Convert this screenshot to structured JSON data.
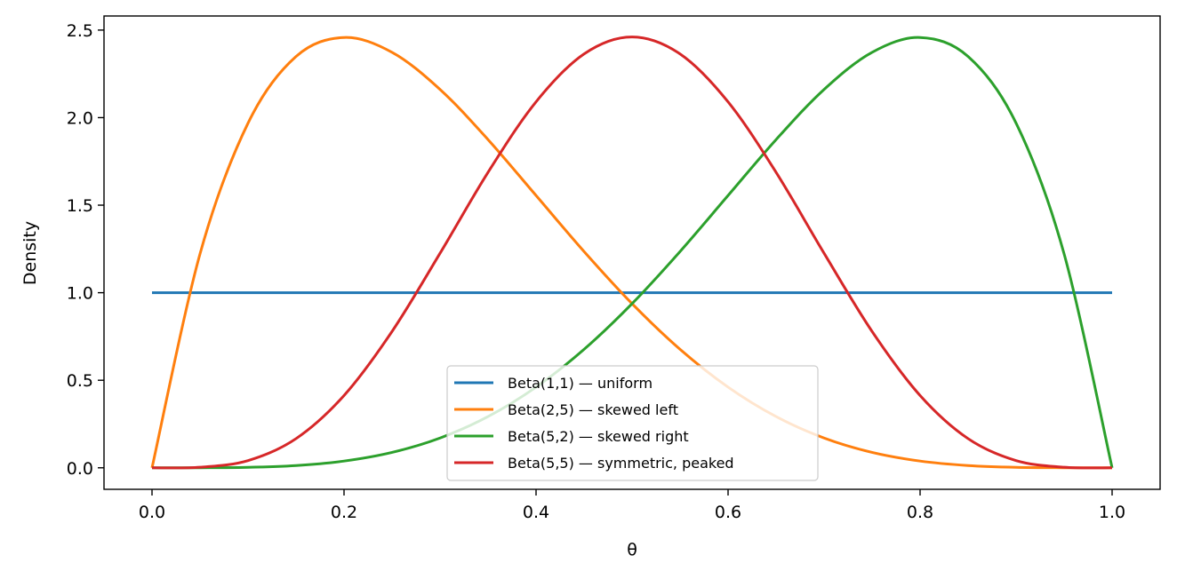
{
  "chart_data": {
    "type": "line",
    "title": "",
    "xlabel": "θ",
    "ylabel": "Density",
    "xlim": [
      -0.05,
      1.05
    ],
    "ylim": [
      -0.1229,
      2.5805
    ],
    "xticks": [
      "0.0",
      "0.2",
      "0.4",
      "0.6",
      "0.8",
      "1.0"
    ],
    "yticks": [
      "0.0",
      "0.5",
      "1.0",
      "1.5",
      "2.0",
      "2.5"
    ],
    "grid": false,
    "legend_placement": "lower center",
    "x": [
      0,
      0.05,
      0.1,
      0.15,
      0.2,
      0.25,
      0.3,
      0.35,
      0.4,
      0.45,
      0.5,
      0.55,
      0.6,
      0.65,
      0.7,
      0.75,
      0.8,
      0.85,
      0.9,
      0.95,
      1
    ],
    "series": [
      {
        "name": "Beta(1,1) — uniform",
        "color": "#1f77b4",
        "values": [
          1,
          1,
          1,
          1,
          1,
          1,
          1,
          1,
          1,
          1,
          1,
          1,
          1,
          1,
          1,
          1,
          1,
          1,
          1,
          1,
          1
        ]
      },
      {
        "name": "Beta(2,5) — skewed left",
        "color": "#ff7f0e",
        "values": [
          0,
          1.2218,
          1.9683,
          2.349,
          2.4576,
          2.373,
          2.1609,
          1.8744,
          1.5552,
          1.2353,
          0.9375,
          0.6766,
          0.4608,
          0.2926,
          0.1701,
          0.0879,
          0.0384,
          0.0129,
          0.0027,
          0.0002,
          0
        ]
      },
      {
        "name": "Beta(5,2) — skewed right",
        "color": "#2ca02c",
        "values": [
          0,
          0.0002,
          0.0027,
          0.0129,
          0.0384,
          0.0879,
          0.1701,
          0.2926,
          0.4608,
          0.6766,
          0.9375,
          1.2353,
          1.5552,
          1.8744,
          2.1609,
          2.373,
          2.4576,
          2.349,
          1.9683,
          1.2218,
          0
        ]
      },
      {
        "name": "Beta(5,5) — symmetric, peaked",
        "color": "#d62728",
        "values": [
          0,
          0.0032,
          0.0413,
          0.1665,
          0.4129,
          0.7787,
          1.2252,
          1.6876,
          2.0902,
          2.3639,
          2.4609,
          2.3639,
          2.0902,
          1.6876,
          1.2252,
          0.7787,
          0.4129,
          0.1665,
          0.0413,
          0.0032,
          0
        ]
      }
    ]
  }
}
